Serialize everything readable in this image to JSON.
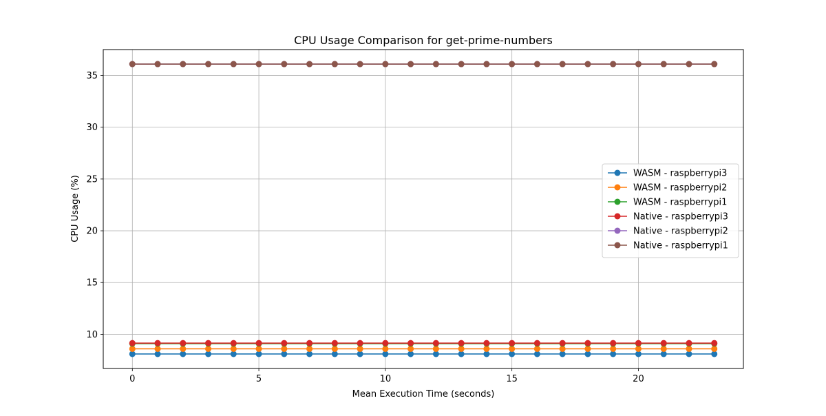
{
  "chart_data": {
    "type": "line",
    "title": "CPU Usage Comparison for get-prime-numbers",
    "xlabel": "Mean Execution Time (seconds)",
    "ylabel": "CPU Usage (%)",
    "xlim": [
      -1.15,
      24.15
    ],
    "ylim": [
      6.7,
      37.5
    ],
    "xticks": [
      0,
      5,
      10,
      15,
      20
    ],
    "yticks": [
      10,
      15,
      20,
      25,
      30,
      35
    ],
    "grid": true,
    "legend_position": "center-right",
    "x": [
      0,
      1,
      2,
      3,
      4,
      5,
      6,
      7,
      8,
      9,
      10,
      11,
      12,
      13,
      14,
      15,
      16,
      17,
      18,
      19,
      20,
      21,
      22,
      23
    ],
    "series": [
      {
        "name": "WASM - raspberrypi3",
        "color": "#1f77b4",
        "value": 8.1
      },
      {
        "name": "WASM - raspberrypi2",
        "color": "#ff7f0e",
        "value": 8.6
      },
      {
        "name": "WASM - raspberrypi1",
        "color": "#2ca02c",
        "value": 9.1
      },
      {
        "name": "Native - raspberrypi3",
        "color": "#d62728",
        "value": 9.15
      },
      {
        "name": "Native - raspberrypi2",
        "color": "#9467bd",
        "value": 36.1
      },
      {
        "name": "Native - raspberrypi1",
        "color": "#8c564b",
        "value": 36.1
      }
    ]
  }
}
